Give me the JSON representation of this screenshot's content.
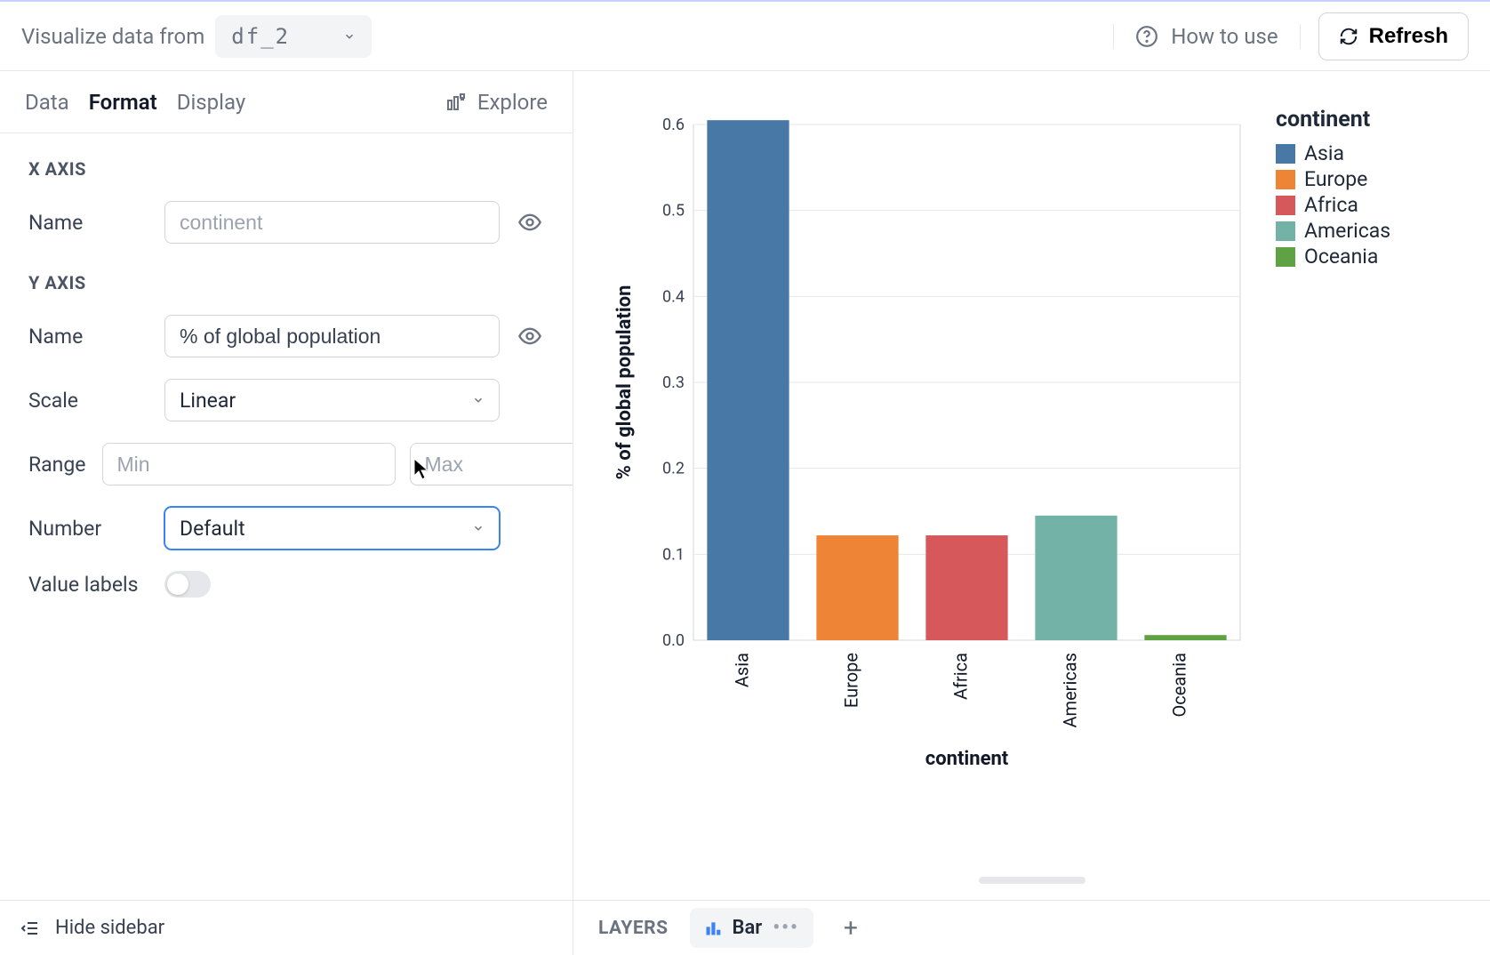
{
  "topbar": {
    "label": "Visualize data from",
    "dataframe": "df_2",
    "howto": "How to use",
    "refresh": "Refresh"
  },
  "sidebar": {
    "tabs": {
      "data": "Data",
      "format": "Format",
      "display": "Display"
    },
    "explore": "Explore",
    "xaxis": {
      "header": "X AXIS",
      "name_label": "Name",
      "name_placeholder": "continent"
    },
    "yaxis": {
      "header": "Y AXIS",
      "name_label": "Name",
      "name_value": "% of global population",
      "scale_label": "Scale",
      "scale_value": "Linear",
      "range_label": "Range",
      "min_placeholder": "Min",
      "max_placeholder": "Max",
      "number_label": "Number",
      "number_value": "Default",
      "valuelabels_label": "Value labels"
    },
    "footer": "Hide sidebar"
  },
  "chart": {
    "type": "bar",
    "ylabel": "% of global population",
    "xlabel": "continent",
    "ylim": [
      0.0,
      0.6
    ],
    "ytick_step": 0.1,
    "yticks": [
      "0.0",
      "0.1",
      "0.2",
      "0.3",
      "0.4",
      "0.5",
      "0.6"
    ],
    "categories": [
      "Asia",
      "Europe",
      "Africa",
      "Americas",
      "Oceania"
    ],
    "values": [
      0.605,
      0.122,
      0.122,
      0.145,
      0.006
    ],
    "colors": [
      "#4878a6",
      "#ee8536",
      "#d6585b",
      "#72b2a7",
      "#5fa244"
    ],
    "background_color": "#ffffff",
    "grid_color": "#e5e7eb",
    "border_color": "#d1d5db",
    "label_fontsize": 20,
    "tick_fontsize": 18,
    "bar_width_ratio": 0.75,
    "legend_title": "continent"
  },
  "layers": {
    "label": "LAYERS",
    "bar": "Bar"
  }
}
